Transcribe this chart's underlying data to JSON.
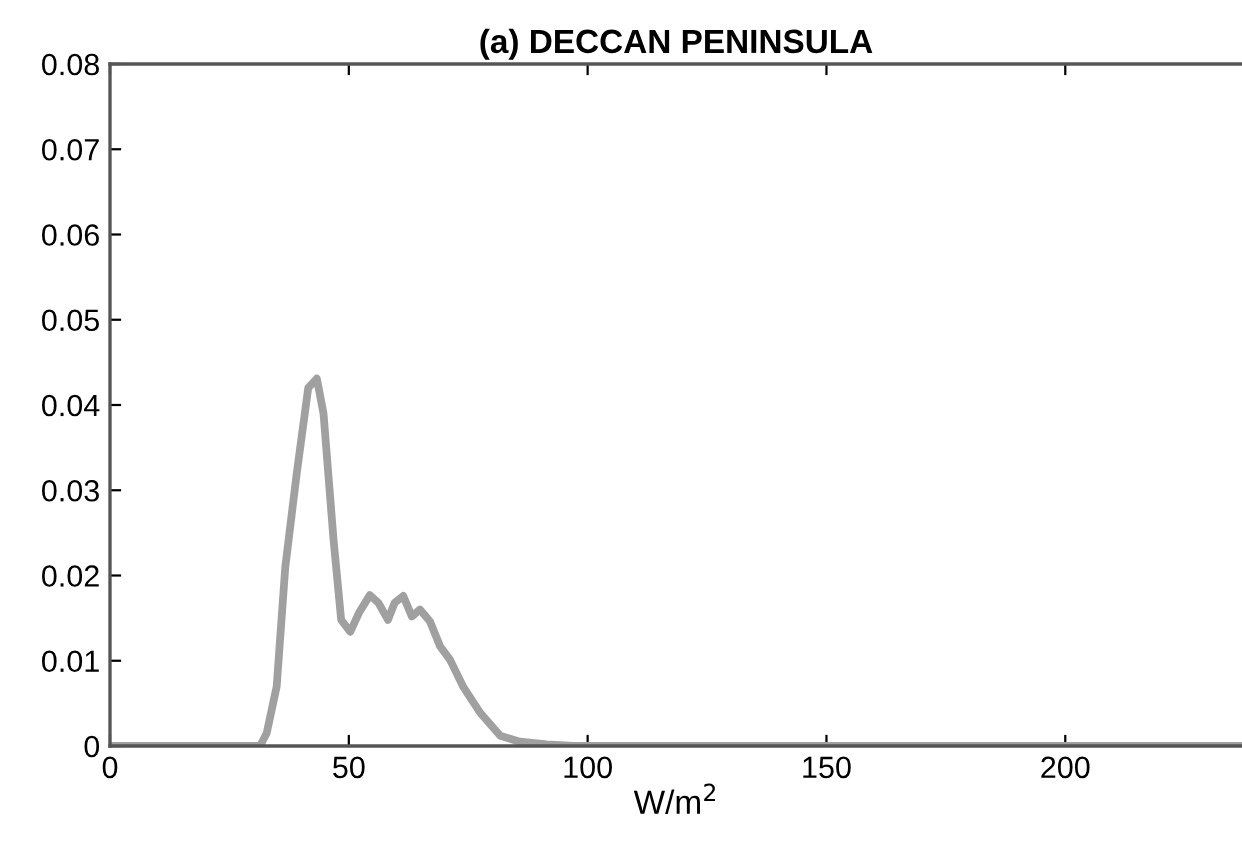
{
  "chart_data": {
    "type": "line",
    "title": "(a) DECCAN PENINSULA",
    "xlabel": "W/m$^{2}$",
    "x": [
      0,
      18.8,
      31.4,
      32.8,
      34.9,
      36.7,
      39.1,
      41.5,
      43.3,
      44.7,
      46.8,
      48.4,
      50.3,
      52.1,
      54.4,
      56.2,
      58.2,
      59.6,
      61.4,
      63.2,
      64.9,
      67.0,
      69.1,
      71.2,
      73.9,
      77.5,
      81.7,
      85.8,
      91.4,
      97.0,
      237
    ],
    "series": [
      {
        "color": "#a0a0a0",
        "values": [
          0,
          0,
          0,
          0.0015,
          0.007,
          0.021,
          0.032,
          0.042,
          0.0431,
          0.039,
          0.0242,
          0.0148,
          0.0134,
          0.0156,
          0.0177,
          0.0168,
          0.0148,
          0.0168,
          0.0176,
          0.0152,
          0.016,
          0.0146,
          0.0117,
          0.0101,
          0.007,
          0.0039,
          0.0012,
          0.0005,
          0.0002,
          0,
          0
        ]
      }
    ],
    "xlim": [
      0,
      237
    ],
    "ylim": [
      0,
      0.08
    ],
    "xticks": [
      0,
      50,
      100,
      150,
      200
    ],
    "yticks": [
      0,
      0.01,
      0.02,
      0.03,
      0.04,
      0.05,
      0.06,
      0.07,
      0.08
    ],
    "grid": false,
    "legend": false,
    "line_style": "solid",
    "marker": "none"
  }
}
